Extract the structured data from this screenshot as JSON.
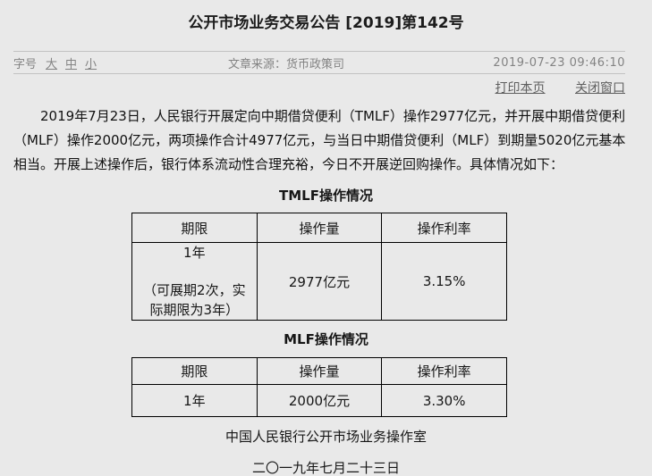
{
  "page": {
    "title": "公开市场业务交易公告 [2019]第142号",
    "meta": {
      "font_size_label": "字号",
      "font_size_options": [
        "大",
        "中",
        "小"
      ],
      "source_label": "文章来源：",
      "source_value": "货币政策司",
      "datetime": "2019-07-23 09:46:10"
    },
    "actions": {
      "print_label": "打印本页",
      "close_label": "关闭窗口"
    },
    "paragraph": "2019年7月23日，人民银行开展定向中期借贷便利（TMLF）操作2977亿元，并开展中期借贷便利（MLF）操作2000亿元，两项操作合计4977亿元，与当日中期借贷便利（MLF）到期量5020亿元基本相当。开展上述操作后，银行体系流动性合理充裕，今日不开展逆回购操作。具体情况如下：",
    "tables": [
      {
        "title": "TMLF操作情况",
        "headers": [
          "期限",
          "操作量",
          "操作利率"
        ],
        "rows": [
          {
            "term": "1年",
            "term_note": "（可展期2次，实际期限为3年）",
            "amount": "2977亿元",
            "rate": "3.15%"
          }
        ]
      },
      {
        "title": "MLF操作情况",
        "headers": [
          "期限",
          "操作量",
          "操作利率"
        ],
        "rows": [
          {
            "term": "1年",
            "term_note": "",
            "amount": "2000亿元",
            "rate": "3.30%"
          }
        ]
      }
    ],
    "footer": {
      "signature": "中国人民银行公开市场业务操作室",
      "date": "二〇一九年七月二十三日"
    },
    "colors": {
      "background": "#e9e9e9",
      "meta_text": "#838383",
      "link_text": "#5f5f5f",
      "body_text": "#111111",
      "divider": "#c2c2c2",
      "table_border": "#000000"
    }
  }
}
